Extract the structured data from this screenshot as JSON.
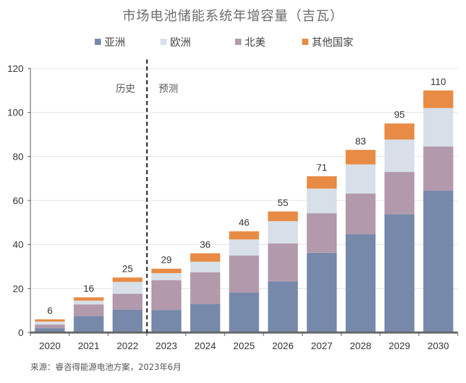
{
  "chart_data": {
    "type": "bar",
    "stacked": true,
    "title": "市场电池储能系统年增容量（吉瓦）",
    "xlabel": "",
    "ylabel": "",
    "ylim": [
      0,
      120
    ],
    "yticks": [
      0,
      20,
      40,
      60,
      80,
      100,
      120
    ],
    "grid": true,
    "legend_position": "top",
    "categories": [
      "2020",
      "2021",
      "2022",
      "2023",
      "2024",
      "2025",
      "2026",
      "2027",
      "2028",
      "2029",
      "2030"
    ],
    "series": [
      {
        "name": "亚洲",
        "color": "#7689aa",
        "values": [
          2.0,
          7.5,
          10.4,
          10.3,
          12.9,
          18.2,
          23.3,
          36.2,
          44.6,
          53.8,
          64.4
        ]
      },
      {
        "name": "北美",
        "color": "#b399ac",
        "values": [
          1.6,
          5.3,
          7.2,
          13.5,
          14.5,
          16.8,
          17.2,
          18.0,
          18.6,
          19.2,
          20.1
        ]
      },
      {
        "name": "欧洲",
        "color": "#d7e0e8",
        "values": [
          1.4,
          1.7,
          5.4,
          3.2,
          4.8,
          7.3,
          10.1,
          11.2,
          13.2,
          14.7,
          17.5
        ]
      },
      {
        "name": "其他国家",
        "color": "#e88b45",
        "values": [
          1.0,
          1.5,
          2.0,
          2.0,
          3.8,
          3.7,
          4.4,
          5.6,
          6.6,
          7.3,
          8.0
        ]
      }
    ],
    "totals": [
      "6",
      "16",
      "25",
      "29",
      "36",
      "46",
      "55",
      "71",
      "83",
      "95",
      "110"
    ],
    "divider_after": "2022",
    "annotations": {
      "history": "历史",
      "forecast": "预测"
    }
  },
  "legend": [
    {
      "name": "亚洲",
      "color": "#7689aa"
    },
    {
      "name": "欧洲",
      "color": "#d7e0e8"
    },
    {
      "name": "北美",
      "color": "#b399ac"
    },
    {
      "name": "其他国家",
      "color": "#e88b45"
    }
  ],
  "source": "来源：睿咨得能源电池方案，2023年6月"
}
